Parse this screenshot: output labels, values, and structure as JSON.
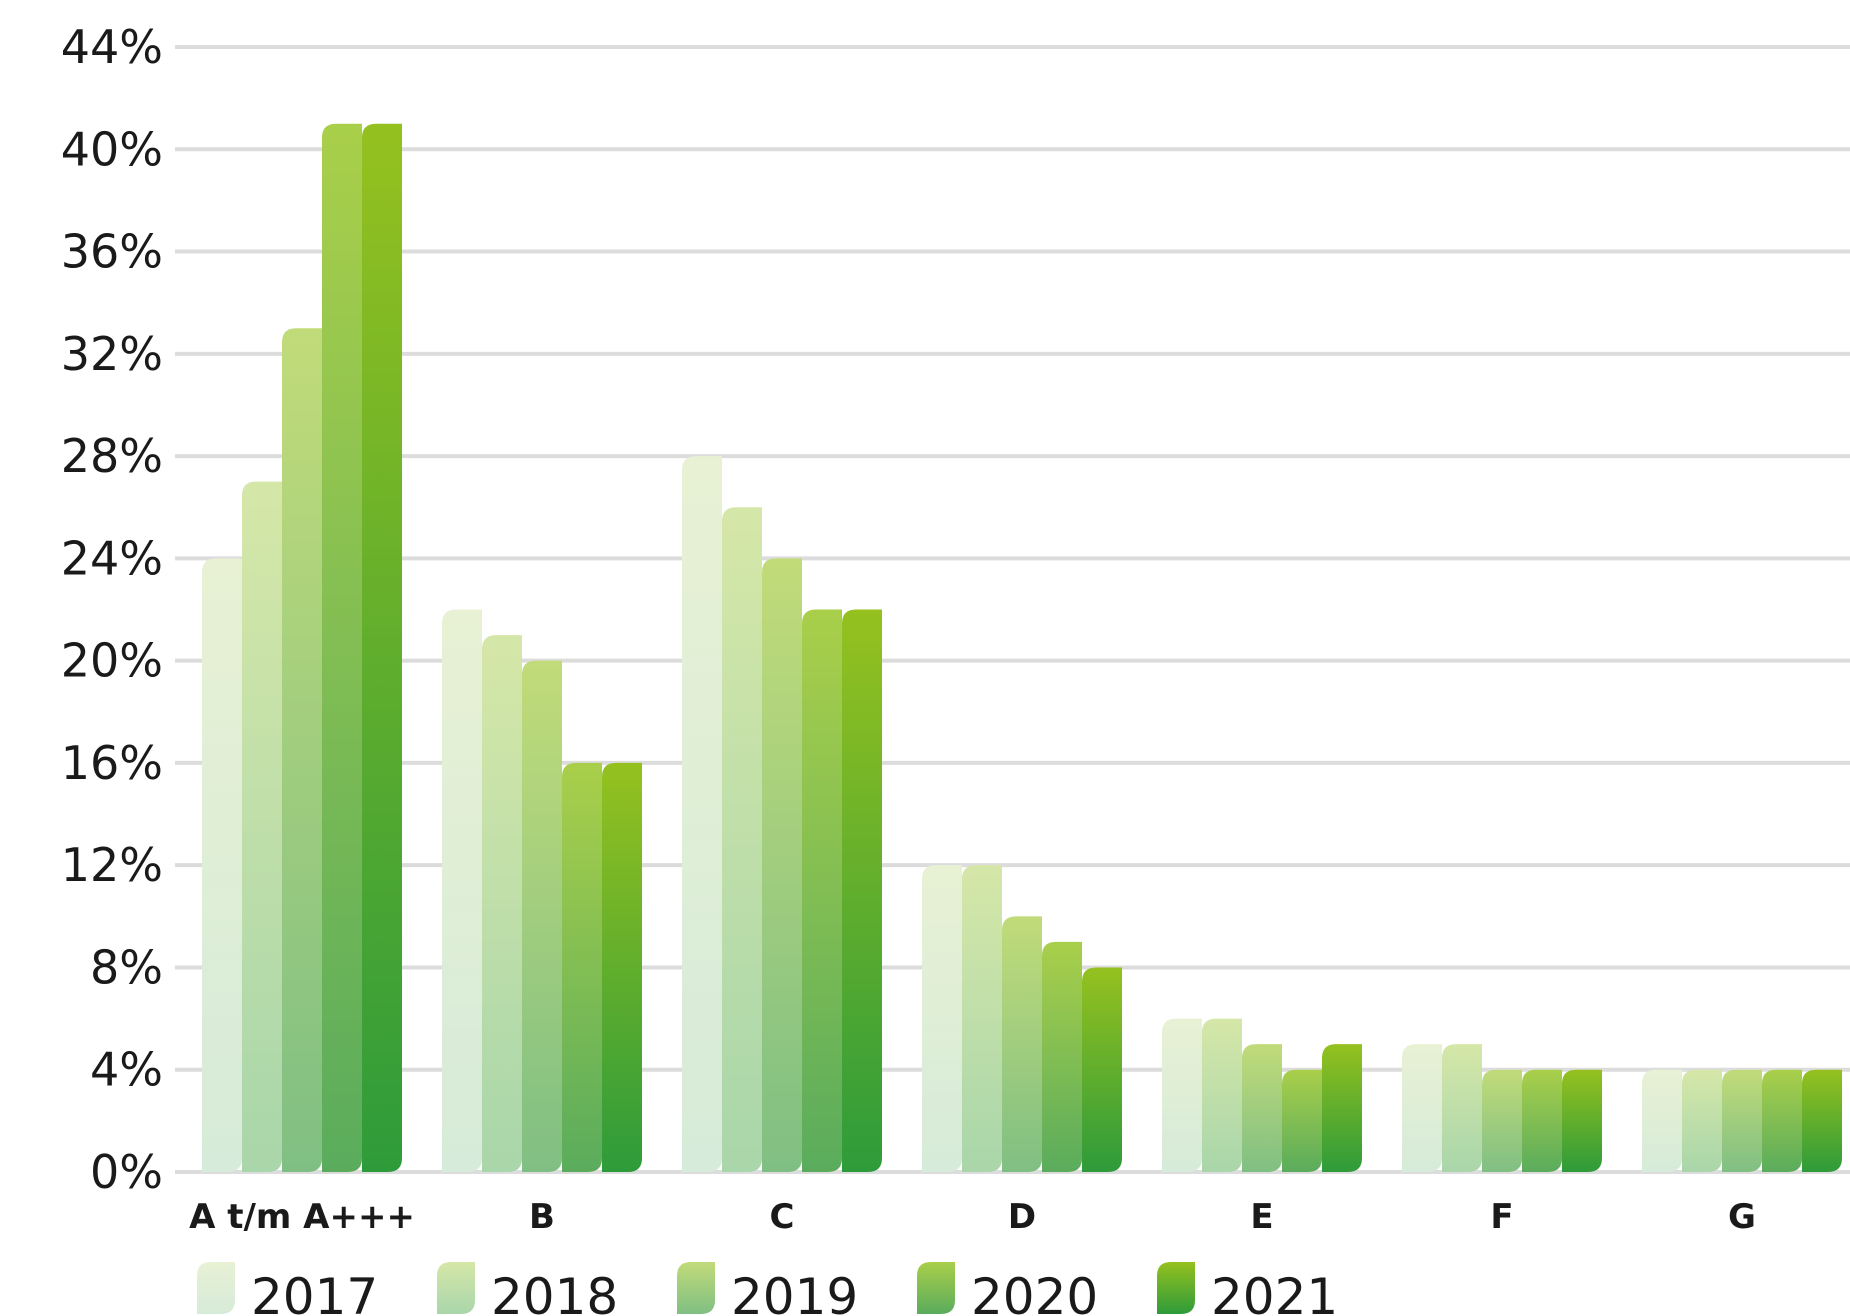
{
  "chart_data": {
    "type": "bar",
    "categories": [
      "A t/m A+++",
      "B",
      "C",
      "D",
      "E",
      "F",
      "G"
    ],
    "series": [
      {
        "name": "2017",
        "values": [
          24,
          22,
          28,
          12,
          6,
          5,
          4
        ],
        "color_top": "#e8f1d4",
        "color_bottom": "#d6ebd9"
      },
      {
        "name": "2018",
        "values": [
          27,
          21,
          26,
          12,
          6,
          5,
          4
        ],
        "color_top": "#d5e7a8",
        "color_bottom": "#a9d6aa"
      },
      {
        "name": "2019",
        "values": [
          33,
          20,
          24,
          10,
          5,
          4,
          4
        ],
        "color_top": "#c1db79",
        "color_bottom": "#80bf83"
      },
      {
        "name": "2020",
        "values": [
          41,
          16,
          22,
          9,
          4,
          4,
          4
        ],
        "color_top": "#a9cf4a",
        "color_bottom": "#5aac5c"
      },
      {
        "name": "2021",
        "values": [
          41,
          16,
          22,
          8,
          5,
          4,
          4
        ],
        "color_top": "#95c11f",
        "color_bottom": "#2e9b3a"
      }
    ],
    "y_ticks": [
      "0%",
      "4%",
      "8%",
      "12%",
      "16%",
      "20%",
      "24%",
      "28%",
      "32%",
      "36%",
      "40%",
      "44%"
    ],
    "ylim": [
      0,
      44
    ],
    "grid": true,
    "legend_position": "bottom-left"
  }
}
